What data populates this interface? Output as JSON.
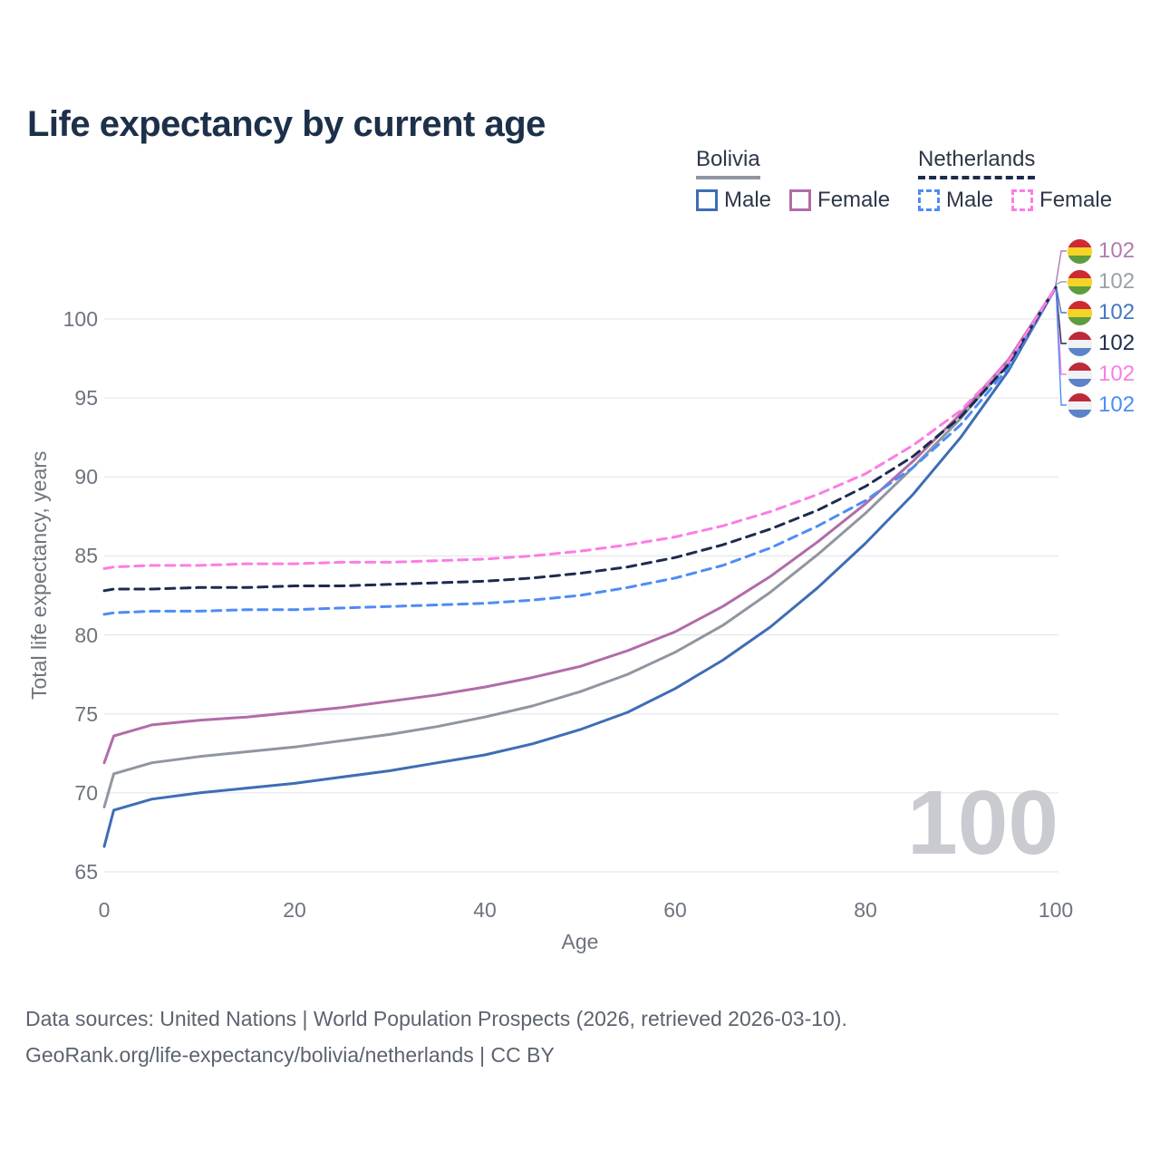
{
  "title": "Life expectancy by current age",
  "watermark": "100",
  "legend": {
    "groups": [
      {
        "label": "Bolivia",
        "line_color": "#9096A0",
        "line_style": "solid",
        "items": [
          {
            "label": "Male",
            "color": "#3E6DB4",
            "style": "solid"
          },
          {
            "label": "Female",
            "color": "#B16CA9",
            "style": "solid"
          }
        ]
      },
      {
        "label": "Netherlands",
        "line_color": "#1D2C4D",
        "line_style": "dashed",
        "items": [
          {
            "label": "Male",
            "color": "#4E8CF5",
            "style": "dashed"
          },
          {
            "label": "Female",
            "color": "#FB7DE4",
            "style": "dashed"
          }
        ]
      }
    ]
  },
  "end_labels": [
    {
      "country": "Bolivia",
      "flag": "bolivia-flag-icon",
      "series": "Bolivia Female",
      "value": "102",
      "color": "#B07BAD"
    },
    {
      "country": "Bolivia",
      "flag": "bolivia-flag-icon",
      "series": "Bolivia Both sexes",
      "value": "102",
      "color": "#9BA0A8"
    },
    {
      "country": "Bolivia",
      "flag": "bolivia-flag-icon",
      "series": "Bolivia Male",
      "value": "102",
      "color": "#4577C4"
    },
    {
      "country": "Netherlands",
      "flag": "netherlands-flag-icon",
      "series": "Netherlands Both sexes",
      "value": "102",
      "color": "#1D2C4D"
    },
    {
      "country": "Netherlands",
      "flag": "netherlands-flag-icon",
      "series": "Netherlands Female",
      "value": "102",
      "color": "#FB7DE4"
    },
    {
      "country": "Netherlands",
      "flag": "netherlands-flag-icon",
      "series": "Netherlands Male",
      "value": "102",
      "color": "#4E8CF5"
    }
  ],
  "footer": {
    "line1": "Data sources: United Nations | World Population Prospects (2026, retrieved 2026-03-10).",
    "line2": "GeoRank.org/life-expectancy/bolivia/netherlands | CC BY"
  },
  "chart_data": {
    "type": "line",
    "title": "Life expectancy by current age",
    "xlabel": "Age",
    "ylabel": "Total life expectancy, years",
    "xlim": [
      0,
      100
    ],
    "ylim": [
      65,
      102.5
    ],
    "x_ticks": [
      0,
      20,
      40,
      60,
      80,
      100
    ],
    "y_ticks": [
      65,
      70,
      75,
      80,
      85,
      90,
      95,
      100
    ],
    "grid": "horizontal",
    "legend_position": "top-right",
    "x": [
      0,
      1,
      5,
      10,
      15,
      20,
      25,
      30,
      35,
      40,
      45,
      50,
      55,
      60,
      65,
      70,
      75,
      80,
      85,
      90,
      95,
      100
    ],
    "series": [
      {
        "name": "Bolivia Male",
        "color": "#3E6DB4",
        "dash": "solid",
        "end_label": 102,
        "values": [
          66.6,
          68.9,
          69.6,
          70.0,
          70.3,
          70.6,
          71.0,
          71.4,
          71.9,
          72.4,
          73.1,
          74.0,
          75.1,
          76.6,
          78.4,
          80.5,
          83.0,
          85.8,
          88.9,
          92.5,
          96.7,
          102.0
        ]
      },
      {
        "name": "Bolivia Both sexes",
        "color": "#9096A0",
        "dash": "solid",
        "end_label": 102,
        "values": [
          69.1,
          71.2,
          71.9,
          72.3,
          72.6,
          72.9,
          73.3,
          73.7,
          74.2,
          74.8,
          75.5,
          76.4,
          77.5,
          78.9,
          80.6,
          82.7,
          85.1,
          87.7,
          90.6,
          93.7,
          97.2,
          102.0
        ]
      },
      {
        "name": "Bolivia Female",
        "color": "#B16CA9",
        "dash": "solid",
        "end_label": 102,
        "values": [
          71.9,
          73.6,
          74.3,
          74.6,
          74.8,
          75.1,
          75.4,
          75.8,
          76.2,
          76.7,
          77.3,
          78.0,
          79.0,
          80.2,
          81.8,
          83.7,
          85.9,
          88.3,
          91.0,
          94.0,
          97.4,
          102.0
        ]
      },
      {
        "name": "Netherlands Male",
        "color": "#4E8CF5",
        "dash": "dashed",
        "end_label": 102,
        "values": [
          81.3,
          81.4,
          81.5,
          81.5,
          81.6,
          81.6,
          81.7,
          81.8,
          81.9,
          82.0,
          82.2,
          82.5,
          83.0,
          83.6,
          84.4,
          85.5,
          86.9,
          88.5,
          90.6,
          93.3,
          96.9,
          102.0
        ]
      },
      {
        "name": "Netherlands Both sexes",
        "color": "#1D2C4D",
        "dash": "dashed",
        "end_label": 102,
        "values": [
          82.8,
          82.9,
          82.9,
          83.0,
          83.0,
          83.1,
          83.1,
          83.2,
          83.3,
          83.4,
          83.6,
          83.9,
          84.3,
          84.9,
          85.7,
          86.7,
          87.9,
          89.4,
          91.3,
          93.8,
          97.1,
          102.0
        ]
      },
      {
        "name": "Netherlands Female",
        "color": "#FB7DE4",
        "dash": "dashed",
        "end_label": 102,
        "values": [
          84.2,
          84.3,
          84.4,
          84.4,
          84.5,
          84.5,
          84.6,
          84.6,
          84.7,
          84.8,
          85.0,
          85.3,
          85.7,
          86.2,
          86.9,
          87.8,
          88.9,
          90.2,
          92.0,
          94.2,
          97.3,
          102.0
        ]
      }
    ]
  }
}
